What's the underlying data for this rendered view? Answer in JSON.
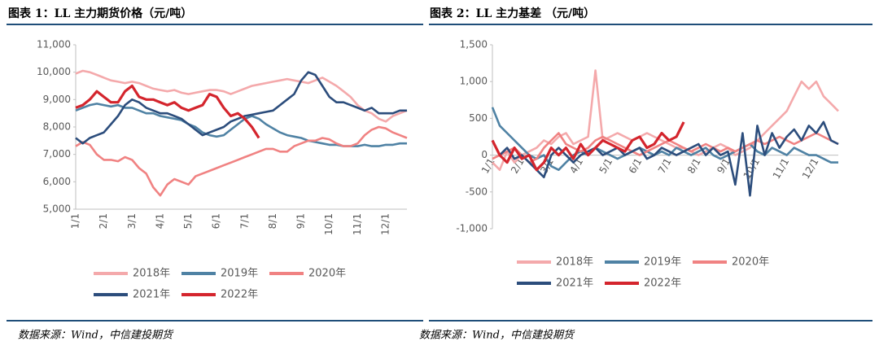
{
  "chart_data": [
    {
      "type": "line",
      "title": "图表 1：LL 主力期货价格（元/吨）",
      "categories": [
        "1/1",
        null,
        null,
        null,
        "2/1",
        null,
        null,
        null,
        "3/1",
        null,
        null,
        null,
        "4/1",
        null,
        null,
        null,
        "5/1",
        null,
        null,
        null,
        "6/1",
        null,
        null,
        null,
        "7/1",
        null,
        null,
        null,
        "8/1",
        null,
        null,
        null,
        "9/1",
        null,
        null,
        null,
        "10/1",
        null,
        null,
        null,
        "11/1",
        null,
        null,
        null,
        "12/1",
        null,
        null,
        null
      ],
      "ylim": [
        5000,
        11000
      ],
      "yticks": [
        {
          "value": 5000,
          "label": "5,000"
        },
        {
          "value": 6000,
          "label": "6,000"
        },
        {
          "value": 7000,
          "label": "7,000"
        },
        {
          "value": 8000,
          "label": "8,000"
        },
        {
          "value": 9000,
          "label": "9,000"
        },
        {
          "value": 10000,
          "label": "10,000"
        },
        {
          "value": 11000,
          "label": "11,000"
        }
      ],
      "series": [
        {
          "name": "2018年",
          "color": "#f4a9ab",
          "values": [
            9950,
            10050,
            10000,
            9900,
            9800,
            9700,
            9650,
            9600,
            9650,
            9600,
            9500,
            9400,
            9350,
            9300,
            9350,
            9250,
            9200,
            9250,
            9300,
            9350,
            9350,
            9300,
            9200,
            9300,
            9400,
            9500,
            9550,
            9600,
            9650,
            9700,
            9750,
            9700,
            9650,
            9600,
            9700,
            9800,
            9650,
            9500,
            9300,
            9100,
            8800,
            8600,
            8500,
            8300,
            8200,
            8400,
            8500,
            8600
          ]
        },
        {
          "name": "2019年",
          "color": "#4f82a4",
          "values": [
            8600,
            8700,
            8800,
            8850,
            8800,
            8750,
            8800,
            8700,
            8700,
            8600,
            8500,
            8500,
            8400,
            8350,
            8300,
            8250,
            8100,
            8000,
            7800,
            7700,
            7650,
            7700,
            7900,
            8100,
            8300,
            8400,
            8300,
            8100,
            7950,
            7800,
            7700,
            7650,
            7600,
            7500,
            7450,
            7400,
            7350,
            7350,
            7300,
            7300,
            7300,
            7350,
            7300,
            7300,
            7350,
            7350,
            7400,
            7400
          ]
        },
        {
          "name": "2020年",
          "color": "#f08282",
          "values": [
            7300,
            7450,
            7350,
            7000,
            6800,
            6800,
            6750,
            6900,
            6800,
            6500,
            6300,
            5800,
            5500,
            5900,
            6100,
            6000,
            5900,
            6200,
            6300,
            6400,
            6500,
            6600,
            6700,
            6800,
            6900,
            7000,
            7100,
            7200,
            7200,
            7100,
            7100,
            7300,
            7400,
            7500,
            7500,
            7600,
            7550,
            7400,
            7300,
            7300,
            7400,
            7700,
            7900,
            8000,
            7950,
            7800,
            7700,
            7600
          ]
        },
        {
          "name": "2021年",
          "color": "#2c4d7c",
          "values": [
            7600,
            7400,
            7600,
            7700,
            7800,
            8100,
            8400,
            8800,
            9000,
            8900,
            8700,
            8600,
            8500,
            8500,
            8400,
            8300,
            8100,
            7900,
            7700,
            7800,
            7900,
            8000,
            8200,
            8300,
            8400,
            8450,
            8500,
            8550,
            8600,
            8800,
            9000,
            9200,
            9700,
            10000,
            9900,
            9500,
            9100,
            8900,
            8900,
            8800,
            8700,
            8600,
            8700,
            8500,
            8500,
            8500,
            8600,
            8600
          ]
        },
        {
          "name": "2022年",
          "color": "#d4252d",
          "values": [
            8700,
            8800,
            9000,
            9300,
            9100,
            8900,
            8900,
            9300,
            9500,
            9100,
            9000,
            9000,
            8900,
            8800,
            8900,
            8700,
            8600,
            8700,
            8800,
            9200,
            9100,
            8700,
            8400,
            8500,
            8300,
            8000,
            7600,
            null,
            null,
            null,
            null,
            null,
            null,
            null,
            null,
            null,
            null,
            null,
            null,
            null,
            null,
            null,
            null,
            null,
            null,
            null,
            null,
            null
          ]
        }
      ]
    },
    {
      "type": "line",
      "title": "图表 2：LL 主力基差 （元/吨）",
      "categories": [
        "1/1",
        null,
        null,
        null,
        "2/1",
        null,
        null,
        null,
        "3/1",
        null,
        null,
        null,
        "4/1",
        null,
        null,
        null,
        "5/1",
        null,
        null,
        null,
        "6/1",
        null,
        null,
        null,
        "7/1",
        null,
        null,
        null,
        "8/1",
        null,
        null,
        null,
        "9/1",
        null,
        null,
        null,
        "10/1",
        null,
        null,
        null,
        "11/1",
        null,
        null,
        null,
        "12/1",
        null,
        null,
        null
      ],
      "ylim": [
        -1000,
        1500
      ],
      "yticks": [
        {
          "value": -1000,
          "label": "-1,000"
        },
        -500,
        0,
        500,
        {
          "value": 1000,
          "label": "1,000"
        },
        {
          "value": 1500,
          "label": "1,500"
        }
      ],
      "series": [
        {
          "name": "2018年",
          "color": "#f4a9ab",
          "values": [
            -100,
            -200,
            50,
            -100,
            0,
            50,
            100,
            200,
            150,
            250,
            300,
            150,
            200,
            250,
            1150,
            200,
            250,
            300,
            250,
            200,
            250,
            300,
            250,
            200,
            150,
            100,
            100,
            50,
            0,
            50,
            100,
            150,
            100,
            0,
            50,
            100,
            200,
            300,
            400,
            500,
            600,
            800,
            1000,
            900,
            1000,
            800,
            700,
            600
          ]
        },
        {
          "name": "2019年",
          "color": "#4f82a4",
          "values": [
            650,
            400,
            300,
            200,
            100,
            0,
            -50,
            0,
            -150,
            -200,
            -100,
            0,
            50,
            0,
            100,
            50,
            0,
            -50,
            0,
            50,
            100,
            50,
            0,
            50,
            0,
            100,
            50,
            0,
            50,
            100,
            0,
            -50,
            0,
            50,
            100,
            150,
            50,
            0,
            100,
            50,
            0,
            100,
            50,
            0,
            0,
            -50,
            -100,
            -100
          ]
        },
        {
          "name": "2020年",
          "color": "#f08282",
          "values": [
            -50,
            0,
            50,
            100,
            0,
            -100,
            -50,
            100,
            200,
            300,
            150,
            100,
            50,
            100,
            200,
            250,
            200,
            150,
            100,
            50,
            0,
            50,
            100,
            150,
            200,
            150,
            100,
            50,
            100,
            150,
            100,
            50,
            100,
            50,
            100,
            150,
            200,
            150,
            200,
            250,
            200,
            150,
            200,
            250,
            300,
            250,
            200,
            150
          ]
        },
        {
          "name": "2021年",
          "color": "#2c4d7c",
          "values": [
            200,
            0,
            100,
            -50,
            0,
            -100,
            -200,
            -300,
            0,
            100,
            0,
            -100,
            0,
            50,
            100,
            0,
            50,
            100,
            0,
            50,
            100,
            -50,
            0,
            100,
            50,
            0,
            50,
            100,
            150,
            0,
            100,
            0,
            50,
            -400,
            300,
            -550,
            400,
            0,
            300,
            100,
            250,
            350,
            200,
            400,
            300,
            450,
            200,
            150
          ]
        },
        {
          "name": "2022年",
          "color": "#d4252d",
          "values": [
            200,
            0,
            -100,
            100,
            -50,
            0,
            -200,
            -100,
            100,
            0,
            100,
            -50,
            150,
            0,
            100,
            200,
            150,
            100,
            50,
            200,
            250,
            100,
            150,
            300,
            200,
            250,
            450,
            null,
            null,
            null,
            null,
            null,
            null,
            null,
            null,
            null,
            null,
            null,
            null,
            null,
            null,
            null,
            null,
            null,
            null,
            null,
            null,
            null
          ]
        }
      ]
    }
  ],
  "sources": [
    "数据来源：Wind，中信建投期货",
    "数据来源：Wind，中信建投期货"
  ]
}
